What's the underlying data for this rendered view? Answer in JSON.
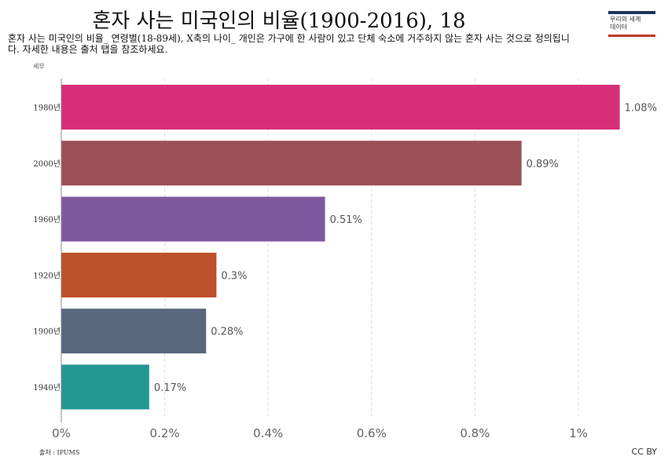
{
  "header": {
    "title": "혼자 사는 미국인의 비율(1900-2016), 18",
    "subtitle": "혼자 사는 미국인의 비율_ 연령별(18-89세), X축의 나이_ 개인은 가구에 한 사람이 있고 단체 숙소에 거주하지 않는 혼자 사는 것으로 정의됩니다. 자세한 내용은 출처 탭을 참조하세요.",
    "logo_line1": "우리의 세계",
    "logo_line2": "데이터"
  },
  "footer": {
    "source": "출처 : IPUMS",
    "license": "CC BY"
  },
  "chart_data": {
    "type": "bar",
    "orientation": "horizontal",
    "title": "혼자 사는 미국인의 비율(1900-2016), 18",
    "ylabel": "세부",
    "categories": [
      "1980년",
      "2000년",
      "1960년",
      "1920년",
      "1900년",
      "1940년"
    ],
    "values": [
      1.08,
      0.89,
      0.51,
      0.3,
      0.28,
      0.17
    ],
    "value_labels": [
      "1.08%",
      "0.89%",
      "0.51%",
      "0.3%",
      "0.28%",
      "0.17%"
    ],
    "colors": [
      "#d62e78",
      "#9b4f57",
      "#8058a0",
      "#bd5129",
      "#58667e",
      "#239791"
    ],
    "xticks": [
      0,
      0.2,
      0.4,
      0.6,
      0.8,
      1
    ],
    "xtick_labels": [
      "0%",
      "0.2%",
      "0.4%",
      "0.6%",
      "0.8%",
      "1%"
    ],
    "xlim": [
      0,
      1.1
    ],
    "grid": true
  }
}
